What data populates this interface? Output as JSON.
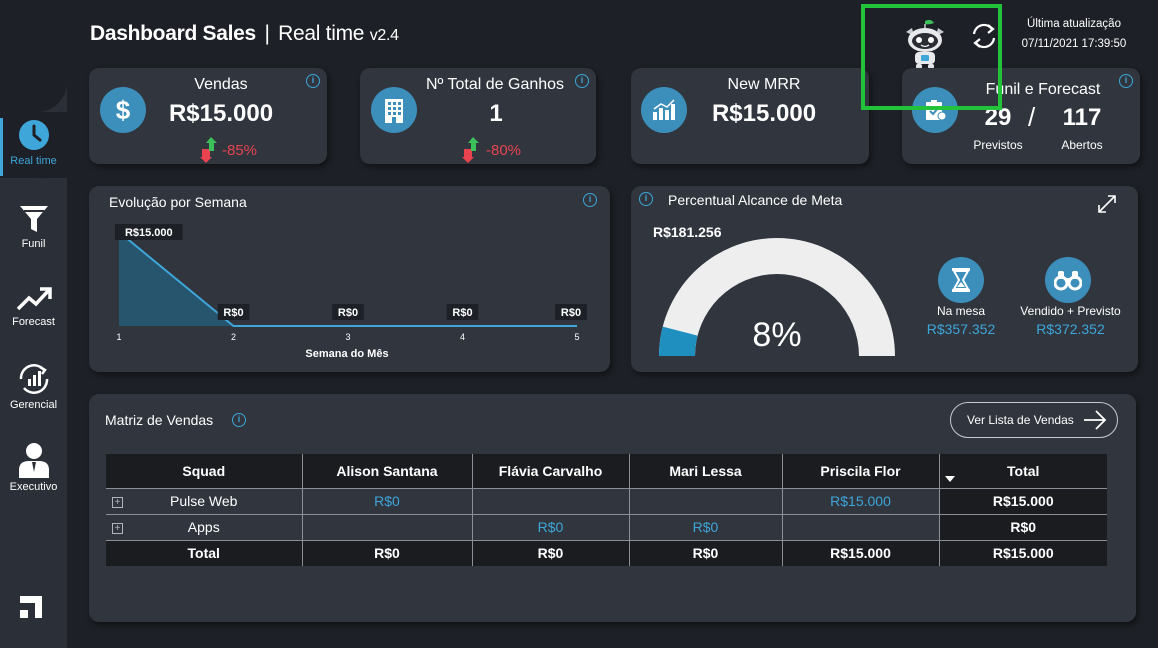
{
  "header": {
    "title": "Dashboard Sales",
    "separator": "|",
    "subtitle": "Real time",
    "version": "v2.4",
    "update_label": "Última atualização",
    "update_time": "07/11/2021 17:39:50"
  },
  "sidebar": {
    "items": [
      {
        "label": "Real time",
        "icon": "clock-icon"
      },
      {
        "label": "Funil",
        "icon": "funnel-icon"
      },
      {
        "label": "Forecast",
        "icon": "trend-up-icon"
      },
      {
        "label": "Gerencial",
        "icon": "chart-cycle-icon"
      },
      {
        "label": "Executivo",
        "icon": "executive-icon"
      }
    ]
  },
  "kpis": {
    "vendas": {
      "title": "Vendas",
      "value": "R$15.000",
      "delta": "-85%"
    },
    "ganhos": {
      "title": "Nº Total de Ganhos",
      "value": "1",
      "delta": "-80%"
    },
    "mrr": {
      "title": "New MRR",
      "value": "R$15.000"
    },
    "funil": {
      "title": "Funil e Forecast",
      "previstos_value": "29",
      "slash": "/",
      "abertos_value": "117",
      "previstos_label": "Previstos",
      "abertos_label": "Abertos"
    }
  },
  "weekly": {
    "title": "Evolução por Semana",
    "chart_data": {
      "type": "area",
      "x": [
        1,
        2,
        3,
        4,
        5
      ],
      "values": [
        15000,
        0,
        0,
        0,
        0
      ],
      "data_labels": [
        "R$15.000",
        "R$0",
        "R$0",
        "R$0",
        "R$0"
      ],
      "xlabel": "Semana do Mês",
      "color": "#1f6f93"
    }
  },
  "gauge": {
    "title": "Percentual Alcance de Meta",
    "target_label": "R$181.256",
    "percent_label": "8%",
    "percent": 0.08,
    "na_mesa_label": "Na mesa",
    "na_mesa_value": "R$357.352",
    "vendido_label": "Vendido + Previsto",
    "vendido_value": "R$372.352"
  },
  "matrix": {
    "title": "Matriz de Vendas",
    "button_label": "Ver Lista de Vendas",
    "columns": [
      "Squad",
      "Alison Santana",
      "Flávia Carvalho",
      "Mari Lessa",
      "Priscila Flor",
      "Total"
    ],
    "rows": [
      {
        "squad": "Pulse Web",
        "cells": [
          "R$0",
          "",
          "",
          "R$15.000"
        ],
        "total": "R$15.000"
      },
      {
        "squad": "Apps",
        "cells": [
          "",
          "R$0",
          "R$0",
          ""
        ],
        "total": "R$0"
      }
    ],
    "total_row": {
      "squad": "Total",
      "cells": [
        "R$0",
        "R$0",
        "R$0",
        "R$15.000"
      ],
      "total": "R$15.000"
    }
  },
  "colors": {
    "accent": "#3ea6d9",
    "negative": "#e8434f",
    "positive": "#3cc05a",
    "highlight": "#22c33a"
  }
}
